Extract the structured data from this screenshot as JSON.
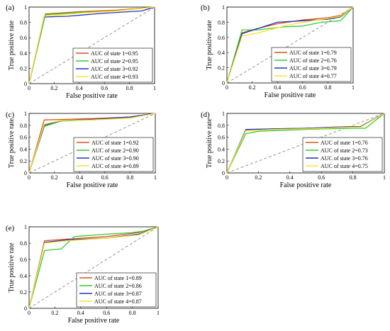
{
  "colors": {
    "state1": "#d95319",
    "state2": "#33cc33",
    "state3": "#2233bb",
    "state4": "#ffe12e",
    "diagonal": "#888888"
  },
  "chart_data": [
    {
      "type": "line",
      "panel_label": "(a)",
      "xlabel": "False positive rate",
      "ylabel": "True positive rate",
      "xlim": [
        0,
        1
      ],
      "ylim": [
        0,
        1
      ],
      "xticks": [
        "0",
        "0.2",
        "0.4",
        "0.6",
        "0.8",
        "1"
      ],
      "yticks": [
        "0",
        "0.2",
        "0.4",
        "0.6",
        "0.8",
        "1"
      ],
      "legend_position": "bottom-right",
      "series": [
        {
          "name": "AUC of state 1=0.95",
          "color_key": "state1",
          "x": [
            0,
            0.13,
            0.4,
            0.7,
            1
          ],
          "y": [
            0,
            0.91,
            0.94,
            0.96,
            1
          ]
        },
        {
          "name": "AUC of state 2=0.95",
          "color_key": "state2",
          "x": [
            0,
            0.13,
            0.4,
            0.7,
            1
          ],
          "y": [
            0,
            0.9,
            0.93,
            0.95,
            1
          ]
        },
        {
          "name": "AUC of state 3=0.92",
          "color_key": "state3",
          "x": [
            0,
            0.12,
            0.3,
            0.6,
            0.9,
            1
          ],
          "y": [
            0,
            0.87,
            0.88,
            0.92,
            0.95,
            1
          ]
        },
        {
          "name": "AUC of state 4=0.93",
          "color_key": "state4",
          "x": [
            0,
            0.12,
            0.4,
            0.7,
            1
          ],
          "y": [
            0,
            0.88,
            0.92,
            0.95,
            1
          ]
        }
      ]
    },
    {
      "type": "line",
      "panel_label": "(b)",
      "xlabel": "False positive rate",
      "ylabel": "True positive rate",
      "xlim": [
        0,
        1
      ],
      "ylim": [
        0,
        1
      ],
      "xticks": [
        "0",
        "0.2",
        "0.4",
        "0.6",
        "0.8",
        "1"
      ],
      "yticks": [
        "0",
        "0.2",
        "0.4",
        "0.6",
        "0.8",
        "1"
      ],
      "legend_position": "bottom-right",
      "series": [
        {
          "name": "AUC of state 1=0.79",
          "color_key": "state1",
          "x": [
            0,
            0.12,
            0.2,
            0.4,
            0.6,
            0.8,
            0.9,
            1
          ],
          "y": [
            0,
            0.66,
            0.7,
            0.78,
            0.83,
            0.86,
            0.89,
            1
          ]
        },
        {
          "name": "AUC of state 2=0.76",
          "color_key": "state2",
          "x": [
            0,
            0.12,
            0.25,
            0.45,
            0.6,
            0.75,
            0.9,
            1
          ],
          "y": [
            0,
            0.7,
            0.7,
            0.74,
            0.75,
            0.8,
            0.82,
            1
          ]
        },
        {
          "name": "AUC of state 3=0.79",
          "color_key": "state3",
          "x": [
            0,
            0.12,
            0.25,
            0.4,
            0.6,
            0.8,
            0.9,
            1
          ],
          "y": [
            0,
            0.65,
            0.72,
            0.8,
            0.82,
            0.84,
            0.87,
            1
          ]
        },
        {
          "name": "AUC of state 4=0.77",
          "color_key": "state4",
          "x": [
            0,
            0.12,
            0.25,
            0.45,
            0.6,
            0.8,
            0.9,
            1
          ],
          "y": [
            0,
            0.62,
            0.66,
            0.75,
            0.8,
            0.85,
            0.88,
            1
          ]
        }
      ]
    },
    {
      "type": "line",
      "panel_label": "(c)",
      "xlabel": "False positive rate",
      "ylabel": "True positive rate",
      "xlim": [
        0,
        1
      ],
      "ylim": [
        0,
        1
      ],
      "xticks": [
        "0",
        "0.2",
        "0.4",
        "0.6",
        "0.8",
        "1"
      ],
      "yticks": [
        "0",
        "0.2",
        "0.4",
        "0.6",
        "0.8",
        "1"
      ],
      "legend_position": "bottom-right",
      "series": [
        {
          "name": "AUC of state 1=0.92",
          "color_key": "state1",
          "x": [
            0,
            0.12,
            0.3,
            0.6,
            0.8,
            1
          ],
          "y": [
            0,
            0.89,
            0.9,
            0.92,
            0.94,
            1
          ]
        },
        {
          "name": "AUC of state 2=0.90",
          "color_key": "state2",
          "x": [
            0,
            0.12,
            0.25,
            0.5,
            0.8,
            1
          ],
          "y": [
            0,
            0.78,
            0.87,
            0.89,
            0.93,
            1
          ]
        },
        {
          "name": "AUC of state 3=0.90",
          "color_key": "state3",
          "x": [
            0,
            0.12,
            0.25,
            0.5,
            0.8,
            1
          ],
          "y": [
            0,
            0.8,
            0.88,
            0.9,
            0.94,
            1
          ]
        },
        {
          "name": "AUC of state 4=0.89",
          "color_key": "state4",
          "x": [
            0,
            0.12,
            0.25,
            0.5,
            0.8,
            1
          ],
          "y": [
            0,
            0.82,
            0.88,
            0.89,
            0.92,
            1
          ]
        }
      ]
    },
    {
      "type": "line",
      "panel_label": "(d)",
      "xlabel": "False positive rate",
      "ylabel": "True positive rate",
      "xlim": [
        0,
        1
      ],
      "ylim": [
        0,
        1
      ],
      "xticks": [
        "0",
        "0.2",
        "0.4",
        "0.6",
        "0.8",
        "1"
      ],
      "yticks": [
        "0",
        "0.2",
        "0.4",
        "0.6",
        "0.8",
        "1"
      ],
      "legend_position": "bottom-right",
      "series": [
        {
          "name": "AUC of state 1=0.76",
          "color_key": "state1",
          "x": [
            0,
            0.12,
            0.3,
            0.5,
            0.7,
            0.85,
            1
          ],
          "y": [
            0,
            0.72,
            0.74,
            0.75,
            0.77,
            0.78,
            1
          ]
        },
        {
          "name": "AUC of state 2=0.73",
          "color_key": "state2",
          "x": [
            0,
            0.12,
            0.2,
            0.4,
            0.6,
            0.8,
            0.88,
            1
          ],
          "y": [
            0,
            0.66,
            0.7,
            0.72,
            0.74,
            0.75,
            0.75,
            1
          ]
        },
        {
          "name": "AUC of state 3=0.76",
          "color_key": "state3",
          "x": [
            0,
            0.12,
            0.3,
            0.5,
            0.7,
            0.85,
            1
          ],
          "y": [
            0,
            0.73,
            0.74,
            0.75,
            0.77,
            0.78,
            1
          ]
        },
        {
          "name": "AUC of state 4=0.75",
          "color_key": "state4",
          "x": [
            0,
            0.12,
            0.3,
            0.5,
            0.7,
            0.85,
            1
          ],
          "y": [
            0,
            0.71,
            0.73,
            0.74,
            0.76,
            0.77,
            1
          ]
        }
      ]
    },
    {
      "type": "line",
      "panel_label": "(e)",
      "xlabel": "False positive rate",
      "ylabel": "True positive rate",
      "xlim": [
        0,
        1
      ],
      "ylim": [
        0,
        1
      ],
      "xticks": [
        "0",
        "0.2",
        "0.4",
        "0.6",
        "0.8",
        "1"
      ],
      "yticks": [
        "0",
        "0.2",
        "0.4",
        "0.6",
        "0.8",
        "1"
      ],
      "legend_position": "bottom-right",
      "series": [
        {
          "name": "AUC of state 1=0.89",
          "color_key": "state1",
          "x": [
            0,
            0.12,
            0.3,
            0.6,
            0.85,
            1
          ],
          "y": [
            0,
            0.83,
            0.85,
            0.88,
            0.93,
            1
          ]
        },
        {
          "name": "AUC of state 2=0.86",
          "color_key": "state2",
          "x": [
            0,
            0.12,
            0.25,
            0.35,
            0.6,
            0.8,
            0.9,
            1
          ],
          "y": [
            0,
            0.71,
            0.73,
            0.88,
            0.91,
            0.93,
            0.95,
            1
          ]
        },
        {
          "name": "AUC of state 3=0.87",
          "color_key": "state3",
          "x": [
            0,
            0.12,
            0.3,
            0.6,
            0.85,
            1
          ],
          "y": [
            0,
            0.81,
            0.84,
            0.86,
            0.91,
            1
          ]
        },
        {
          "name": "AUC of state 4=0.87",
          "color_key": "state4",
          "x": [
            0,
            0.12,
            0.3,
            0.6,
            0.85,
            1
          ],
          "y": [
            0,
            0.8,
            0.83,
            0.86,
            0.9,
            1
          ]
        }
      ]
    }
  ]
}
